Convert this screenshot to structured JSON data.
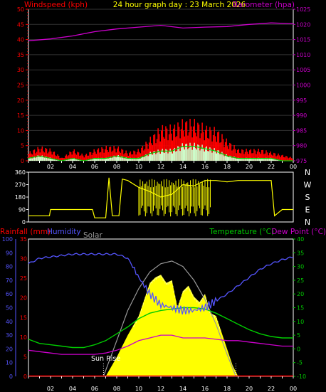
{
  "header": {
    "title": "24 hour graph day : 23 March 2026",
    "left_label": "Windspeed (kph)",
    "right_label": "Barometer (hpa)"
  },
  "colors": {
    "background": "#000000",
    "wind": "#ff0000",
    "gust_avg": "#00cc00",
    "wind_light": "#ccffcc",
    "barometer": "#cc00cc",
    "direction": "#ffff00",
    "rain": "#ff0000",
    "humidity": "#5555ff",
    "solar": "#999999",
    "temperature": "#00cc00",
    "dewpoint": "#cc00cc",
    "sun": "#ffff00",
    "axis": "#ffffff"
  },
  "chart_data": [
    {
      "type": "bar",
      "name": "wind_barometer",
      "x_ticks": [
        "02",
        "04",
        "06",
        "08",
        "10",
        "12",
        "14",
        "16",
        "18",
        "20",
        "22",
        "00"
      ],
      "y_left_ticks": [
        "0",
        "5",
        "10",
        "15",
        "20",
        "25",
        "30",
        "35",
        "40",
        "45",
        "50"
      ],
      "y_right_ticks": [
        "975",
        "980",
        "985",
        "990",
        "995",
        "1000",
        "1005",
        "1010",
        "1015",
        "1020",
        "1025"
      ],
      "ylim_left": [
        0,
        50
      ],
      "ylim_right": [
        975,
        1025
      ],
      "xlim": [
        0,
        24
      ],
      "barometer": {
        "x": [
          0,
          2,
          4,
          6,
          8,
          10,
          12,
          14,
          16,
          18,
          20,
          22,
          24
        ],
        "y": [
          1014.6,
          1015.2,
          1016.2,
          1017.6,
          1018.5,
          1019.1,
          1019.7,
          1018.8,
          1019.1,
          1019.3,
          1020.0,
          1020.5,
          1020.2
        ]
      },
      "wind_avg": {
        "x": [
          0,
          1,
          2,
          3,
          4,
          5,
          6,
          7,
          8,
          9,
          10,
          11,
          12,
          13,
          14,
          15,
          16,
          17,
          18,
          19,
          20,
          21,
          22,
          23,
          24
        ],
        "y": [
          1,
          2,
          1,
          0,
          1,
          0,
          1,
          1,
          2,
          1,
          1,
          3,
          4,
          4,
          6,
          6,
          5,
          4,
          2,
          1,
          1,
          1,
          1,
          0,
          0
        ]
      },
      "wind_gust": {
        "x": [
          0,
          1,
          2,
          3,
          4,
          5,
          6,
          7,
          8,
          9,
          10,
          11,
          12,
          13,
          14,
          15,
          16,
          17,
          18,
          19,
          20,
          21,
          22,
          23,
          24
        ],
        "y": [
          3,
          5,
          4,
          1,
          4,
          2,
          4,
          5,
          5,
          3,
          4,
          8,
          12,
          12,
          14,
          14,
          12,
          11,
          7,
          4,
          4,
          4,
          3,
          2,
          1
        ]
      }
    },
    {
      "type": "line",
      "name": "wind_direction",
      "y_ticks": [
        "0",
        "90",
        "180",
        "270",
        "360"
      ],
      "compass_labels": [
        "N",
        "W",
        "S",
        "E",
        "N"
      ],
      "ylim": [
        0,
        360
      ],
      "xlim": [
        0,
        24
      ],
      "direction": {
        "x": [
          0,
          1.9,
          2,
          5.8,
          6,
          7,
          7.3,
          7.6,
          8.2,
          8.5,
          9,
          10,
          11,
          12,
          13,
          14,
          15,
          16,
          17,
          18,
          19,
          20,
          21,
          22,
          22.3,
          23,
          24
        ],
        "y": [
          45,
          45,
          90,
          90,
          30,
          30,
          320,
          45,
          45,
          310,
          300,
          250,
          220,
          180,
          200,
          270,
          260,
          300,
          300,
          290,
          300,
          300,
          300,
          300,
          45,
          90,
          90
        ]
      }
    },
    {
      "type": "area",
      "name": "rain_humidity_temp",
      "left_header": "Rainfall (mm)",
      "humidity_header": "Humidity",
      "solar_header": "Solar",
      "right_header_temp": "Temperature (°C)",
      "right_header_dew": "Dew Point (°C)",
      "annotation": "Sun Rise",
      "x_ticks": [
        "02",
        "04",
        "06",
        "08",
        "10",
        "12",
        "14",
        "16",
        "18",
        "20",
        "22",
        "00"
      ],
      "y_hum_ticks": [
        "0",
        "10",
        "20",
        "30",
        "40",
        "50",
        "60",
        "70",
        "80",
        "90",
        "100"
      ],
      "y_rain_ticks": [
        "0",
        "5",
        "10",
        "15",
        "20",
        "25",
        "30",
        "35"
      ],
      "y_temp_ticks": [
        "-10",
        "-5",
        "0",
        "5",
        "10",
        "15",
        "20",
        "25",
        "30",
        "35",
        "40"
      ],
      "ylim_hum": [
        0,
        100
      ],
      "ylim_temp": [
        -10,
        40
      ],
      "xlim": [
        0,
        24
      ],
      "humidity": {
        "x": [
          0,
          1,
          2,
          3,
          4,
          5,
          6,
          7,
          8,
          9,
          10,
          11,
          12,
          13,
          14,
          15,
          16,
          17,
          18,
          19,
          20,
          21,
          22,
          23,
          24
        ],
        "y": [
          82,
          86,
          87,
          88,
          89,
          89,
          89,
          89,
          89,
          86,
          72,
          60,
          52,
          50,
          48,
          48,
          50,
          55,
          60,
          66,
          72,
          78,
          82,
          85,
          87
        ]
      },
      "temperature": {
        "x": [
          0,
          1,
          2,
          3,
          4,
          5,
          6,
          7,
          8,
          9,
          10,
          11,
          12,
          13,
          14,
          15,
          16,
          17,
          18,
          19,
          20,
          21,
          22,
          23,
          24
        ],
        "y": [
          3.5,
          2,
          1.5,
          1,
          0.5,
          0.5,
          1.5,
          3,
          5.5,
          8,
          11,
          13,
          14,
          14.5,
          15,
          15,
          14.5,
          13,
          11,
          9,
          7,
          5.5,
          4.5,
          4,
          4
        ]
      },
      "dewpoint": {
        "x": [
          0,
          1,
          2,
          3,
          4,
          5,
          6,
          7,
          8,
          9,
          10,
          11,
          12,
          13,
          14,
          15,
          16,
          17,
          18,
          19,
          20,
          21,
          22,
          23,
          24
        ],
        "y": [
          -0.5,
          -1,
          -1.5,
          -2,
          -2,
          -2,
          -2,
          -1.5,
          -0.5,
          1,
          3,
          4,
          5,
          5,
          4,
          4,
          4,
          3.5,
          3,
          3,
          2.5,
          2,
          1.5,
          1,
          1
        ]
      },
      "solar_theoretical": {
        "x": [
          6.8,
          8,
          9,
          10,
          11,
          12,
          13,
          14,
          15,
          16,
          17,
          18,
          18.8
        ],
        "y": [
          0,
          13,
          24,
          32,
          38,
          41,
          42,
          40,
          35,
          28,
          19,
          8,
          0
        ]
      },
      "solar_actual": {
        "x": [
          7,
          8,
          9,
          10,
          10.5,
          11,
          11.5,
          12,
          12.5,
          13,
          13.5,
          14,
          14.5,
          15,
          15.5,
          16,
          16.5,
          17,
          17.5,
          18,
          18.5,
          19
        ],
        "y": [
          0,
          7,
          15,
          22,
          28,
          34,
          36,
          37,
          34,
          35,
          25,
          31,
          33,
          29,
          27,
          30,
          23,
          22,
          16,
          10,
          4,
          0
        ]
      },
      "rainfall": {
        "x": [
          0,
          24
        ],
        "y": [
          0,
          0
        ]
      }
    }
  ]
}
